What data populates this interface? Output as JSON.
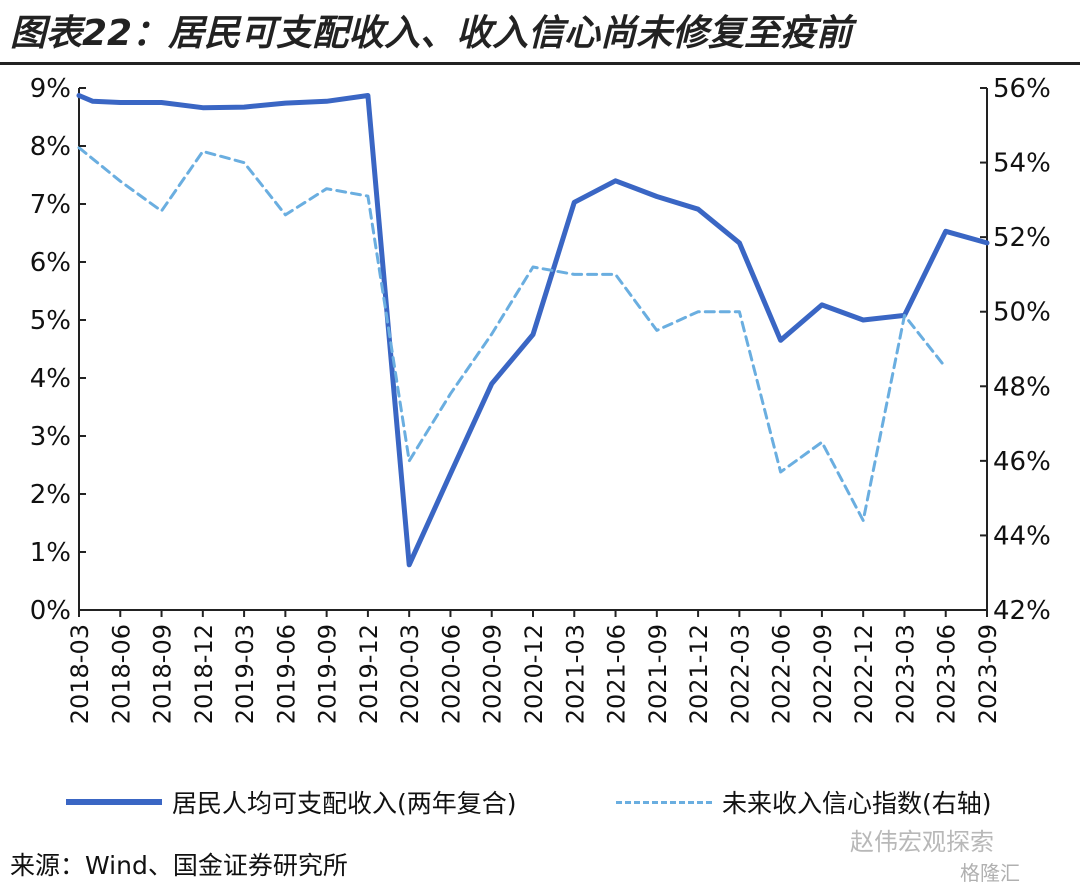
{
  "title": "图表22：居民可支配收入、收入信心尚未修复至疫前",
  "source": "来源：Wind、国金证券研究所",
  "watermark": "赵伟宏观探索",
  "watermark_brand": "格隆汇",
  "colors": {
    "series1": "#3a66c4",
    "series2": "#6aaee0",
    "axis": "#222222",
    "text": "#111111"
  },
  "chart_data": {
    "type": "line",
    "x": [
      "2018-03",
      "2018-04",
      "2018-05",
      "2018-06",
      "2018-07",
      "2018-08",
      "2018-09",
      "2018-10",
      "2018-11",
      "2018-12",
      "2019-01",
      "2019-02",
      "2019-03",
      "2019-04",
      "2019-05",
      "2019-06",
      "2019-07",
      "2019-08",
      "2019-09",
      "2019-10",
      "2019-11",
      "2019-12",
      "2020-01",
      "2020-02",
      "2020-03",
      "2020-04",
      "2020-05",
      "2020-06",
      "2020-07",
      "2020-08",
      "2020-09",
      "2020-10",
      "2020-11",
      "2020-12",
      "2021-01",
      "2021-02",
      "2021-03",
      "2021-04",
      "2021-05",
      "2021-06",
      "2021-07",
      "2021-08",
      "2021-09",
      "2021-10",
      "2021-11",
      "2021-12",
      "2022-01",
      "2022-02",
      "2022-03",
      "2022-04",
      "2022-05",
      "2022-06",
      "2022-07",
      "2022-08",
      "2022-09",
      "2022-10",
      "2022-11",
      "2022-12",
      "2023-01",
      "2023-02",
      "2023-03",
      "2023-04",
      "2023-05",
      "2023-06",
      "2023-07",
      "2023-08",
      "2023-09"
    ],
    "x_ticks": [
      "2018-03",
      "2018-06",
      "2018-09",
      "2018-12",
      "2019-03",
      "2019-06",
      "2019-09",
      "2019-12",
      "2020-03",
      "2020-06",
      "2020-09",
      "2020-12",
      "2021-03",
      "2021-06",
      "2021-09",
      "2021-12",
      "2022-03",
      "2022-06",
      "2022-09",
      "2022-12",
      "2023-03",
      "2023-06",
      "2023-09"
    ],
    "y_left": {
      "lim": [
        0,
        9
      ],
      "ticks": [
        "0%",
        "1%",
        "2%",
        "3%",
        "4%",
        "5%",
        "6%",
        "7%",
        "8%",
        "9%"
      ]
    },
    "y_right": {
      "lim": [
        42,
        56
      ],
      "ticks": [
        "42%",
        "44%",
        "46%",
        "48%",
        "50%",
        "52%",
        "54%",
        "56%"
      ]
    },
    "series": [
      {
        "name": "居民人均可支配收入(两年复合)",
        "axis": "left",
        "style": "solid",
        "points": [
          [
            "2018-03",
            8.87
          ],
          [
            "2018-04",
            8.77
          ],
          [
            "2018-06",
            8.75
          ],
          [
            "2018-09",
            8.75
          ],
          [
            "2018-12",
            8.66
          ],
          [
            "2019-03",
            8.67
          ],
          [
            "2019-06",
            8.74
          ],
          [
            "2019-09",
            8.77
          ],
          [
            "2019-12",
            8.87
          ],
          [
            "2020-03",
            0.78
          ],
          [
            "2020-06",
            2.35
          ],
          [
            "2020-09",
            3.9
          ],
          [
            "2020-12",
            4.75
          ],
          [
            "2021-03",
            7.03
          ],
          [
            "2021-06",
            7.4
          ],
          [
            "2021-09",
            7.13
          ],
          [
            "2021-12",
            6.91
          ],
          [
            "2022-03",
            6.33
          ],
          [
            "2022-06",
            4.65
          ],
          [
            "2022-09",
            5.26
          ],
          [
            "2022-12",
            5.0
          ],
          [
            "2023-03",
            5.08
          ],
          [
            "2023-06",
            6.53
          ],
          [
            "2023-09",
            6.33
          ]
        ]
      },
      {
        "name": "未来收入信心指数(右轴)",
        "axis": "right",
        "style": "dashed",
        "points": [
          [
            "2018-03",
            54.4
          ],
          [
            "2018-06",
            53.5
          ],
          [
            "2018-09",
            52.7
          ],
          [
            "2018-12",
            54.3
          ],
          [
            "2019-03",
            54.0
          ],
          [
            "2019-06",
            52.6
          ],
          [
            "2019-09",
            53.3
          ],
          [
            "2019-12",
            53.1
          ],
          [
            "2020-03",
            46.0
          ],
          [
            "2020-06",
            47.8
          ],
          [
            "2020-09",
            49.4
          ],
          [
            "2020-12",
            51.2
          ],
          [
            "2021-03",
            51.0
          ],
          [
            "2021-06",
            51.0
          ],
          [
            "2021-09",
            49.5
          ],
          [
            "2021-12",
            50.0
          ],
          [
            "2022-03",
            50.0
          ],
          [
            "2022-06",
            45.7
          ],
          [
            "2022-09",
            46.5
          ],
          [
            "2022-12",
            44.4
          ],
          [
            "2023-03",
            49.9
          ],
          [
            "2023-06",
            48.5
          ]
        ]
      }
    ],
    "legend_position": "bottom",
    "grid": false
  }
}
